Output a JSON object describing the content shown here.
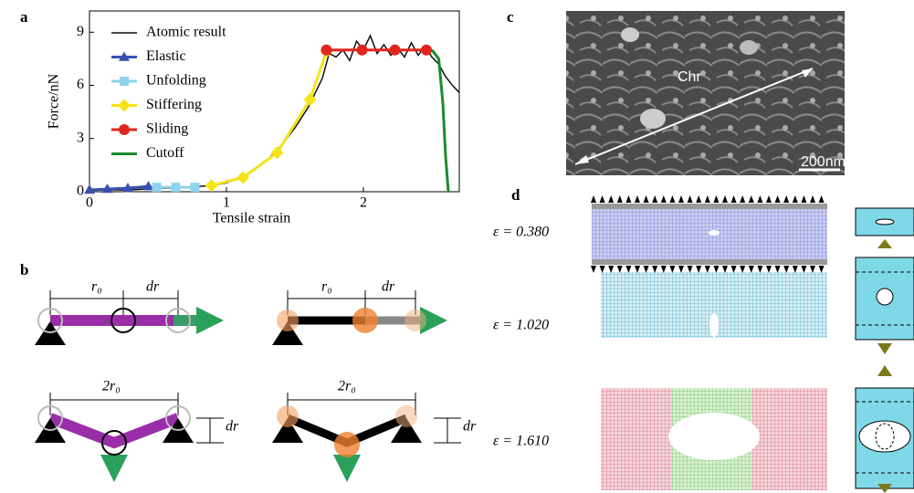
{
  "panels": {
    "a": "a",
    "b": "b",
    "c": "c",
    "d": "d"
  },
  "chart_data": {
    "type": "line",
    "xlabel": "Tensile strain",
    "ylabel": "Force/nN",
    "xlim": [
      0,
      2.7
    ],
    "ylim": [
      0,
      10.2
    ],
    "xticks": [
      0,
      1,
      2
    ],
    "yticks": [
      0,
      3,
      6,
      9
    ],
    "series": [
      {
        "name": "Atomic result",
        "color": "#111111",
        "marker": null,
        "x": [
          0,
          0.1,
          0.2,
          0.3,
          0.4,
          0.5,
          0.6,
          0.7,
          0.8,
          0.9,
          1.0,
          1.1,
          1.2,
          1.3,
          1.4,
          1.5,
          1.6,
          1.7,
          1.75,
          1.8,
          1.85,
          1.9,
          1.95,
          2.0,
          2.05,
          2.1,
          2.15,
          2.2,
          2.25,
          2.3,
          2.35,
          2.4,
          2.45,
          2.5,
          2.55,
          2.6,
          2.65,
          2.7
        ],
        "values": [
          0.1,
          0.1,
          0.1,
          0.1,
          0.15,
          0.2,
          0.2,
          0.25,
          0.3,
          0.35,
          0.5,
          0.8,
          1.2,
          1.8,
          2.6,
          3.6,
          4.8,
          6.4,
          7.8,
          7.6,
          8.0,
          7.4,
          8.5,
          8.0,
          8.8,
          7.8,
          8.3,
          7.7,
          8.1,
          7.6,
          8.4,
          7.7,
          8.2,
          7.6,
          7.2,
          6.5,
          6.0,
          5.6
        ]
      },
      {
        "name": "Elastic",
        "color": "#3b4fb0",
        "marker": "triangle",
        "x": [
          0,
          0.13,
          0.28,
          0.43
        ],
        "values": [
          0.1,
          0.15,
          0.2,
          0.3
        ]
      },
      {
        "name": "Unfolding",
        "color": "#8fd3ec",
        "marker": "square",
        "x": [
          0.49,
          0.63,
          0.77
        ],
        "values": [
          0.25,
          0.25,
          0.25
        ]
      },
      {
        "name": "Stiffering",
        "color": "#f5e31a",
        "marker": "diamond",
        "x": [
          0.89,
          1.12,
          1.37,
          1.61,
          1.73
        ],
        "values": [
          0.35,
          0.8,
          2.2,
          5.2,
          7.9
        ]
      },
      {
        "name": "Sliding",
        "color": "#e0261c",
        "marker": "circle",
        "x": [
          1.73,
          1.99,
          2.23,
          2.46
        ],
        "values": [
          8.0,
          8.0,
          8.0,
          8.0
        ]
      },
      {
        "name": "Cutoff",
        "color": "#1c8a2e",
        "marker": null,
        "x": [
          2.5,
          2.55,
          2.58,
          2.6,
          2.62
        ],
        "values": [
          8.0,
          7.5,
          5.0,
          2.0,
          0
        ]
      }
    ]
  },
  "diagram_b": {
    "labels": [
      "r₀",
      "dr",
      "r₀",
      "dr",
      "2r₀",
      "dr",
      "2r₀",
      "dr"
    ]
  },
  "image_c": {
    "labels": [
      "Chr",
      "200nm"
    ]
  },
  "panel_d": {
    "strains": [
      "ε = 0.380",
      "ε = 1.020",
      "ε = 1.610"
    ]
  }
}
